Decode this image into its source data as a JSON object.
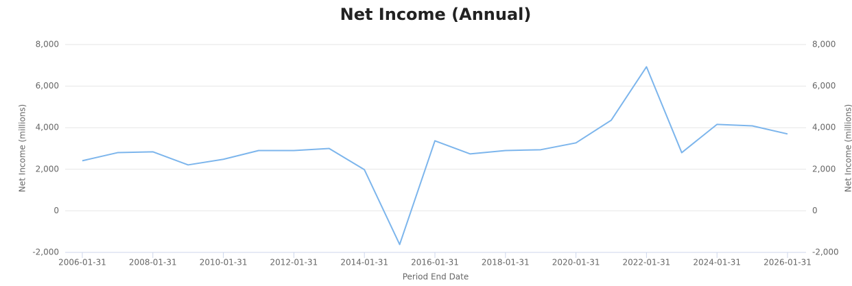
{
  "chart_data": {
    "type": "line",
    "title": "Net Income (Annual)",
    "x_label": "Period End Date",
    "y_label": "Net Income (millions)",
    "y2_label": "Net Income (millions)",
    "categories": [
      "2006-01-31",
      null,
      "2008-01-31",
      null,
      "2010-01-31",
      null,
      "2012-01-31",
      null,
      "2014-01-31",
      null,
      "2016-01-31",
      null,
      "2018-01-31",
      null,
      "2020-01-31",
      null,
      "2022-01-31",
      null,
      "2024-01-31",
      null,
      "2026-01-31"
    ],
    "series": [
      {
        "name": "Net Income",
        "color": "#7cb5ec",
        "values": [
          2410,
          2800,
          2840,
          2210,
          2480,
          2900,
          2900,
          3000,
          1980,
          -1620,
          3370,
          2740,
          2900,
          2940,
          3270,
          4360,
          6930,
          2800,
          4160,
          4090,
          3700
        ]
      }
    ],
    "ylim": [
      -2000,
      8000
    ],
    "yticks": [
      {
        "value": -2000,
        "label": "-2,000"
      },
      0,
      {
        "value": 2000,
        "label": "2,000"
      },
      {
        "value": 4000,
        "label": "4,000"
      },
      {
        "value": 6000,
        "label": "6,000"
      },
      {
        "value": 8000,
        "label": "8,000"
      }
    ],
    "y2lim": [
      -2000,
      8000
    ],
    "y2ticks": [
      {
        "value": -2000,
        "label": "-2,000"
      },
      0,
      {
        "value": 2000,
        "label": "2,000"
      },
      {
        "value": 4000,
        "label": "4,000"
      },
      {
        "value": 6000,
        "label": "6,000"
      },
      {
        "value": 8000,
        "label": "8,000"
      }
    ],
    "grid": true
  }
}
